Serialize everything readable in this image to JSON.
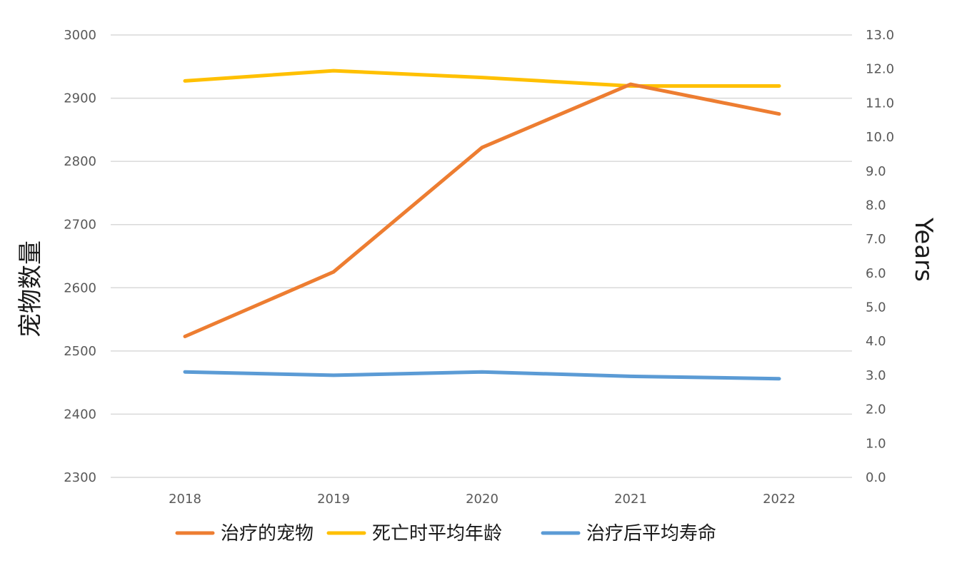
{
  "chart_data": {
    "type": "line",
    "categories": [
      "2018",
      "2019",
      "2020",
      "2021",
      "2022"
    ],
    "series": [
      {
        "name": "治疗的宠物",
        "axis": "left",
        "color": "#ED7D31",
        "values": [
          2523,
          2625,
          2822,
          2922,
          2875
        ]
      },
      {
        "name": "死亡时平均年龄",
        "axis": "right",
        "color": "#FFC000",
        "values": [
          11.65,
          11.95,
          11.75,
          11.5,
          11.5
        ]
      },
      {
        "name": "治疗后平均寿命",
        "axis": "right",
        "color": "#5B9BD5",
        "values": [
          3.1,
          3.0,
          3.1,
          2.97,
          2.9
        ]
      }
    ],
    "y_left": {
      "label": "宠物数量",
      "ylim": [
        2300,
        3000
      ],
      "ticks": [
        "2300",
        "2400",
        "2500",
        "2600",
        "2700",
        "2800",
        "2900",
        "3000"
      ]
    },
    "y_right": {
      "label": "Years",
      "ylim": [
        0,
        13
      ],
      "ticks": [
        "0.0",
        "1.0",
        "2.0",
        "3.0",
        "4.0",
        "5.0",
        "6.0",
        "7.0",
        "8.0",
        "9.0",
        "10.0",
        "11.0",
        "12.0",
        "13.0"
      ]
    },
    "grid": true,
    "legend_position": "bottom"
  }
}
